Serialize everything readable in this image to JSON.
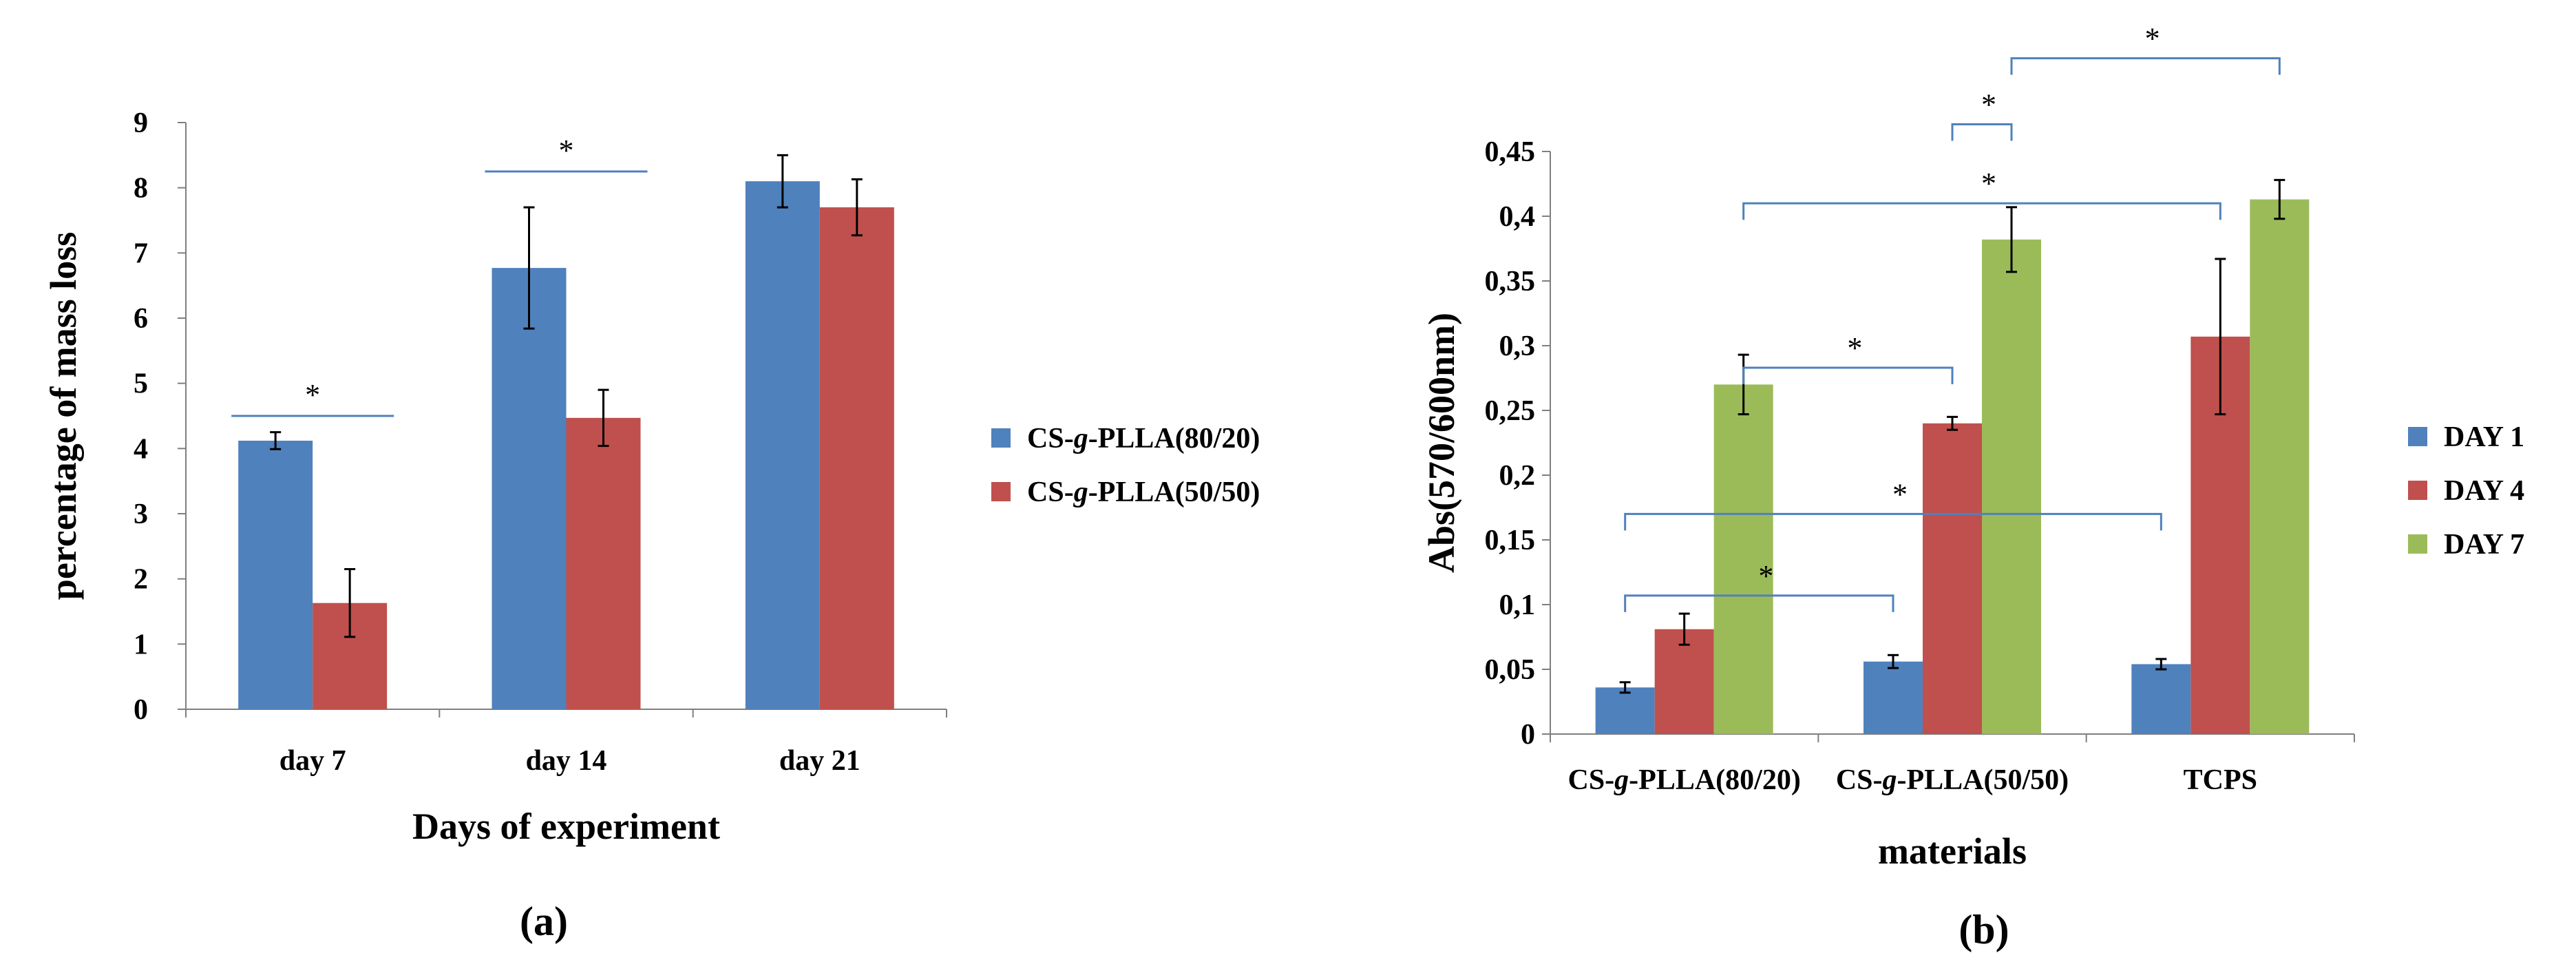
{
  "colors": {
    "blue": "#4F81BD",
    "red": "#C0504D",
    "green": "#9BBB59",
    "bracket": "#4F81BD",
    "axis": "#7f7f7f"
  },
  "chart_data": [
    {
      "type": "bar",
      "panel_label": "(a)",
      "xlabel": "Days of experiment",
      "ylabel": "percentage of mass loss",
      "ylim": [
        0,
        9
      ],
      "yticks": [
        "0",
        "1",
        "2",
        "3",
        "4",
        "5",
        "6",
        "7",
        "8",
        "9"
      ],
      "categories": [
        "day 7",
        "day 14",
        "day 21"
      ],
      "series": [
        {
          "name_prefix": "CS-",
          "name_italic": "g",
          "name_suffix": "-PLLA(80/20)",
          "color": "#4F81BD",
          "values": [
            4.12,
            6.77,
            8.1
          ],
          "errors": [
            0.13,
            0.93,
            0.4
          ]
        },
        {
          "name_prefix": "CS-",
          "name_italic": "g",
          "name_suffix": "-PLLA(50/50)",
          "color": "#C0504D",
          "values": [
            1.63,
            4.47,
            7.7
          ],
          "errors": [
            0.52,
            0.43,
            0.43
          ]
        }
      ],
      "significance": [
        {
          "label": "*",
          "type": "line",
          "from": [
            0,
            0
          ],
          "to": [
            0,
            1
          ],
          "y": 4.5
        },
        {
          "label": "*",
          "type": "line",
          "from": [
            1,
            0
          ],
          "to": [
            1,
            1
          ],
          "y": 8.25
        }
      ],
      "legend_position": "right"
    },
    {
      "type": "bar",
      "panel_label": "(b)",
      "xlabel": "materials",
      "ylabel": "Abs(570/600nm)",
      "ylim": [
        0,
        0.45
      ],
      "yticks": [
        "0",
        "0,05",
        "0,1",
        "0,15",
        "0,2",
        "0,25",
        "0,3",
        "0,35",
        "0,4",
        "0,45"
      ],
      "categories": [
        {
          "prefix": "CS-",
          "italic": "g",
          "suffix": "-PLLA(80/20)"
        },
        {
          "prefix": "CS-",
          "italic": "g",
          "suffix": "-PLLA(50/50)"
        },
        {
          "prefix": "TCPS",
          "italic": "",
          "suffix": ""
        }
      ],
      "series": [
        {
          "name": "DAY 1",
          "color": "#4F81BD",
          "values": [
            0.036,
            0.056,
            0.054
          ],
          "errors": [
            0.004,
            0.005,
            0.004
          ]
        },
        {
          "name": "DAY 4",
          "color": "#C0504D",
          "values": [
            0.081,
            0.24,
            0.307
          ],
          "errors": [
            0.012,
            0.005,
            0.06
          ]
        },
        {
          "name": "DAY 7",
          "color": "#9BBB59",
          "values": [
            0.27,
            0.382,
            0.413
          ],
          "errors": [
            0.023,
            0.025,
            0.015
          ]
        }
      ],
      "significance": [
        {
          "label": "*",
          "from": [
            0,
            0
          ],
          "to": [
            1,
            0
          ],
          "y": 0.107
        },
        {
          "label": "*",
          "from": [
            0,
            0
          ],
          "to": [
            2,
            0
          ],
          "y": 0.17
        },
        {
          "label": "*",
          "from": [
            0,
            2
          ],
          "to": [
            1,
            1
          ],
          "y": 0.283
        },
        {
          "label": "*",
          "from": [
            0,
            2
          ],
          "to": [
            2,
            1
          ],
          "y": 0.41
        },
        {
          "label": "*",
          "from": [
            1,
            2
          ],
          "to": [
            1,
            1
          ],
          "y": 0.471
        },
        {
          "label": "*",
          "from": [
            1,
            2
          ],
          "to": [
            2,
            2
          ],
          "y": 0.522
        }
      ],
      "legend_position": "right"
    }
  ]
}
